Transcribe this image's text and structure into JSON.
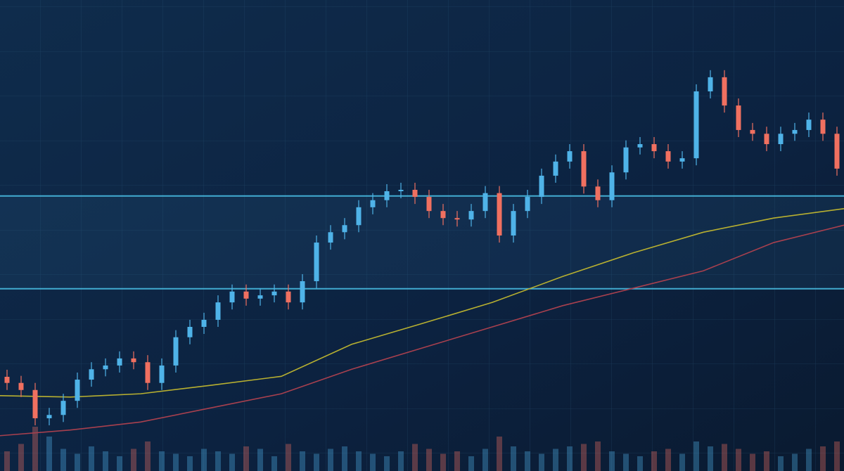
{
  "chart_data": {
    "type": "candlestick",
    "ylim": [
      0,
      100
    ],
    "up_color": "#4fb3e8",
    "down_color": "#f07060",
    "open": [
      20.0,
      18.7,
      17.2,
      11.2,
      11.9,
      14.9,
      19.4,
      21.6,
      22.4,
      23.9,
      23.1,
      18.7,
      22.4,
      28.4,
      30.6,
      32.1,
      35.8,
      38.1,
      36.6,
      37.3,
      38.1,
      35.8,
      40.3,
      48.5,
      50.7,
      52.2,
      56.0,
      57.5,
      59.4,
      59.7,
      58.2,
      55.2,
      53.7,
      53.4,
      55.2,
      59.0,
      50.0,
      55.2,
      58.2,
      62.7,
      65.7,
      67.9,
      60.4,
      57.5,
      63.4,
      68.7,
      69.4,
      67.9,
      65.7,
      66.4,
      80.6,
      83.6,
      77.6,
      72.4,
      71.6,
      69.4,
      71.6,
      72.4,
      74.6,
      71.6
    ],
    "high": [
      21.5,
      20.2,
      18.7,
      13.4,
      16.4,
      20.9,
      23.1,
      23.9,
      25.4,
      25.4,
      24.6,
      23.9,
      29.9,
      32.1,
      33.6,
      37.3,
      39.6,
      39.6,
      38.8,
      39.6,
      39.6,
      41.8,
      50.0,
      52.2,
      53.7,
      57.5,
      59.0,
      60.9,
      61.2,
      61.2,
      59.7,
      56.7,
      55.2,
      56.7,
      60.5,
      60.5,
      56.7,
      59.7,
      64.2,
      67.2,
      69.4,
      69.4,
      61.9,
      64.9,
      70.2,
      70.9,
      70.9,
      69.4,
      67.9,
      82.1,
      85.1,
      85.1,
      79.1,
      73.9,
      73.1,
      73.1,
      73.9,
      76.1,
      76.1,
      73.1
    ],
    "low": [
      17.2,
      15.7,
      9.7,
      9.7,
      10.4,
      13.4,
      17.9,
      20.1,
      20.9,
      21.6,
      17.2,
      17.2,
      20.9,
      26.9,
      29.1,
      30.6,
      34.3,
      35.1,
      35.1,
      35.8,
      34.3,
      34.3,
      38.8,
      47.0,
      49.2,
      50.7,
      54.5,
      56.0,
      57.9,
      56.7,
      53.7,
      52.2,
      51.9,
      51.9,
      53.7,
      48.5,
      48.5,
      53.7,
      56.7,
      61.2,
      64.2,
      58.9,
      56.0,
      56.0,
      61.9,
      67.2,
      66.4,
      64.2,
      64.2,
      64.9,
      79.1,
      76.1,
      70.9,
      70.1,
      67.9,
      67.9,
      70.1,
      70.9,
      70.1,
      62.7
    ],
    "close": [
      18.7,
      17.2,
      11.2,
      11.9,
      14.9,
      19.4,
      21.6,
      22.4,
      23.9,
      23.1,
      18.7,
      22.4,
      28.4,
      30.6,
      32.1,
      35.8,
      38.1,
      36.6,
      37.3,
      38.1,
      35.8,
      40.3,
      48.5,
      50.7,
      52.2,
      56.0,
      57.5,
      59.4,
      59.7,
      58.2,
      55.2,
      53.7,
      53.4,
      55.2,
      59.0,
      50.0,
      55.2,
      58.2,
      62.7,
      65.7,
      67.9,
      60.4,
      57.5,
      63.4,
      68.7,
      69.4,
      67.9,
      65.7,
      66.4,
      80.6,
      83.6,
      77.6,
      72.4,
      71.6,
      69.4,
      71.6,
      72.4,
      74.6,
      71.6,
      64.2
    ],
    "volume": [
      40,
      55,
      90,
      70,
      45,
      35,
      50,
      40,
      30,
      45,
      60,
      40,
      35,
      30,
      45,
      40,
      35,
      50,
      45,
      30,
      55,
      40,
      35,
      45,
      50,
      40,
      35,
      30,
      40,
      55,
      45,
      35,
      40,
      30,
      45,
      70,
      50,
      40,
      35,
      45,
      50,
      55,
      60,
      40,
      35,
      30,
      40,
      45,
      35,
      60,
      50,
      55,
      45,
      35,
      40,
      30,
      35,
      45,
      50,
      60
    ],
    "volume_lim": [
      0,
      100
    ],
    "overlays": [
      {
        "color": "#b8b030",
        "values": [
          16.0,
          15.7,
          16.4,
          18.2,
          20.1,
          26.9,
          31.3,
          35.8,
          41.3,
          46.3,
          50.7,
          53.7,
          55.7
        ]
      },
      {
        "color": "#a8404e",
        "values": [
          7.5,
          8.7,
          10.4,
          13.4,
          16.4,
          21.6,
          26.1,
          30.6,
          35.1,
          38.8,
          42.5,
          48.5,
          52.2
        ]
      }
    ],
    "levels": [
      58.4,
      38.7
    ],
    "level_color": "#4cc4ea"
  }
}
